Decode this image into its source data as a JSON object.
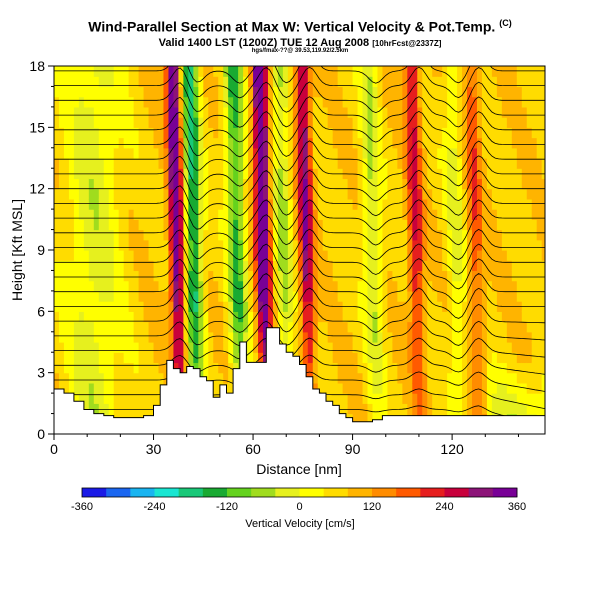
{
  "header": {
    "title": "Wind-Parallel Section at Max W: Vertical Velocity & Pot.Temp.",
    "copyright": "(C)",
    "subtitle": "Valid 1400 LST (1200Z) TUE 12 Aug 2008",
    "forecast_tag": "[10hrFcst@2337Z]",
    "meta": "hgs/fmax-??@ 39.53,119.92/2.5km"
  },
  "colorbar": {
    "title": "Vertical Velocity [cm/s]",
    "ticks": [
      -360,
      -240,
      -120,
      0,
      120,
      240,
      360
    ],
    "colors": [
      "#1a1ae6",
      "#1a66f0",
      "#19b4f0",
      "#19e6d2",
      "#19c878",
      "#19aa32",
      "#64d21e",
      "#a0dc1e",
      "#e6f01e",
      "#ffff00",
      "#ffdc00",
      "#ffb400",
      "#ff8c00",
      "#ff5a00",
      "#e61e1e",
      "#c8003c",
      "#8c1478",
      "#780096"
    ]
  },
  "chart_data": {
    "type": "heatmap",
    "title": "Wind-Parallel Section at Max W: Vertical Velocity & Pot.Temp.",
    "xlabel": "Distance [nm]",
    "ylabel": "Height [Kft MSL]",
    "xlim": [
      0,
      148
    ],
    "ylim": [
      0,
      18
    ],
    "xticks": [
      0,
      30,
      60,
      90,
      120
    ],
    "yticks": [
      0,
      3,
      6,
      9,
      12,
      15,
      18
    ],
    "fill_variable": "Vertical Velocity [cm/s]",
    "contour_variable": "Potential Temperature",
    "terrain": {
      "x": [
        0,
        3,
        6,
        9,
        12,
        15,
        18,
        21,
        24,
        27,
        30,
        32,
        34,
        36,
        38,
        40,
        42,
        44,
        46,
        48,
        50,
        52,
        54,
        56,
        58,
        60,
        62,
        64,
        66,
        68,
        70,
        72,
        74,
        76,
        78,
        80,
        82,
        84,
        86,
        88,
        90,
        93,
        96,
        99,
        148
      ],
      "height": [
        2.2,
        2.0,
        1.6,
        1.2,
        1.0,
        0.9,
        0.8,
        0.8,
        0.8,
        0.9,
        1.4,
        2.4,
        3.6,
        3.2,
        3.0,
        3.3,
        3.2,
        2.8,
        2.6,
        1.8,
        2.4,
        2.0,
        3.2,
        4.5,
        3.5,
        3.5,
        3.5,
        5.2,
        5.2,
        4.4,
        4.0,
        3.8,
        3.4,
        2.8,
        2.2,
        2.0,
        1.6,
        1.4,
        1.0,
        0.8,
        0.6,
        0.6,
        0.7,
        0.9,
        0.9
      ]
    },
    "updrafts": [
      {
        "x": 38,
        "peak": 300
      },
      {
        "x": 64,
        "peak": 340
      },
      {
        "x": 77,
        "peak": 240
      },
      {
        "x": 110,
        "peak": 180
      },
      {
        "x": 128,
        "peak": 120
      }
    ],
    "downdrafts": [
      {
        "x": 43,
        "peak": -240
      },
      {
        "x": 56,
        "peak": -200
      },
      {
        "x": 70,
        "peak": -120
      },
      {
        "x": 97,
        "peak": -110
      },
      {
        "x": 122,
        "peak": -80
      }
    ]
  }
}
